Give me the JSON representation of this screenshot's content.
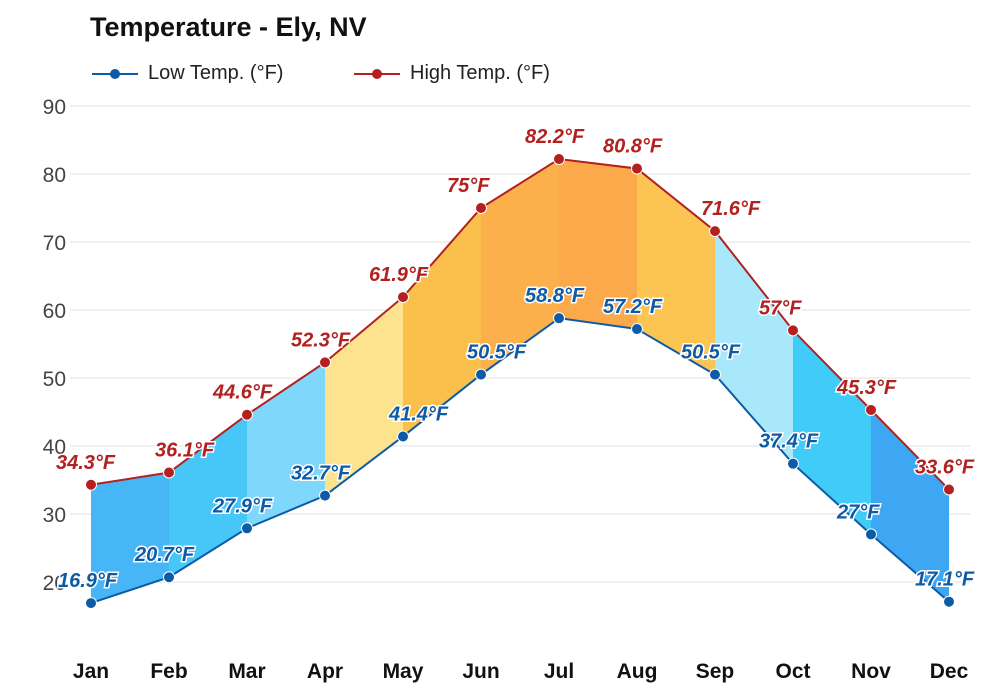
{
  "chart_data": {
    "type": "area",
    "title": "Temperature - Ely, NV",
    "xlabel": "",
    "ylabel": "",
    "ylim": [
      10,
      90
    ],
    "yticks": [
      20,
      30,
      40,
      50,
      60,
      70,
      80,
      90
    ],
    "categories": [
      "Jan",
      "Feb",
      "Mar",
      "Apr",
      "May",
      "Jun",
      "Jul",
      "Aug",
      "Sep",
      "Oct",
      "Nov",
      "Dec"
    ],
    "series": [
      {
        "name": "Low Temp. (°F)",
        "color": "#0d5aa7",
        "values": [
          16.9,
          20.7,
          27.9,
          32.7,
          41.4,
          50.5,
          58.8,
          57.2,
          50.5,
          37.4,
          27,
          17.1
        ],
        "labels": [
          "16.9°F",
          "20.7°F",
          "27.9°F",
          "32.7°F",
          "41.4°F",
          "50.5°F",
          "58.8°F",
          "57.2°F",
          "50.5°F",
          "37.4°F",
          "27°F",
          "17.1°F"
        ]
      },
      {
        "name": "High Temp. (°F)",
        "color": "#b32020",
        "values": [
          34.3,
          36.1,
          44.6,
          52.3,
          61.9,
          75,
          82.2,
          80.8,
          71.6,
          57,
          45.3,
          33.6
        ],
        "labels": [
          "34.3°F",
          "36.1°F",
          "44.6°F",
          "52.3°F",
          "61.9°F",
          "75°F",
          "82.2°F",
          "80.8°F",
          "71.6°F",
          "57°F",
          "45.3°F",
          "33.6°F"
        ]
      }
    ],
    "band_colors": [
      "#47b6f6",
      "#47c6f8",
      "#7fd7fb",
      "#fde38e",
      "#fbbf4c",
      "#fcb04c",
      "#fba94a",
      "#fcc453",
      "#a9e8fb",
      "#41cbf8",
      "#3da7f3"
    ],
    "grid": true,
    "legend_position": "top-left"
  }
}
